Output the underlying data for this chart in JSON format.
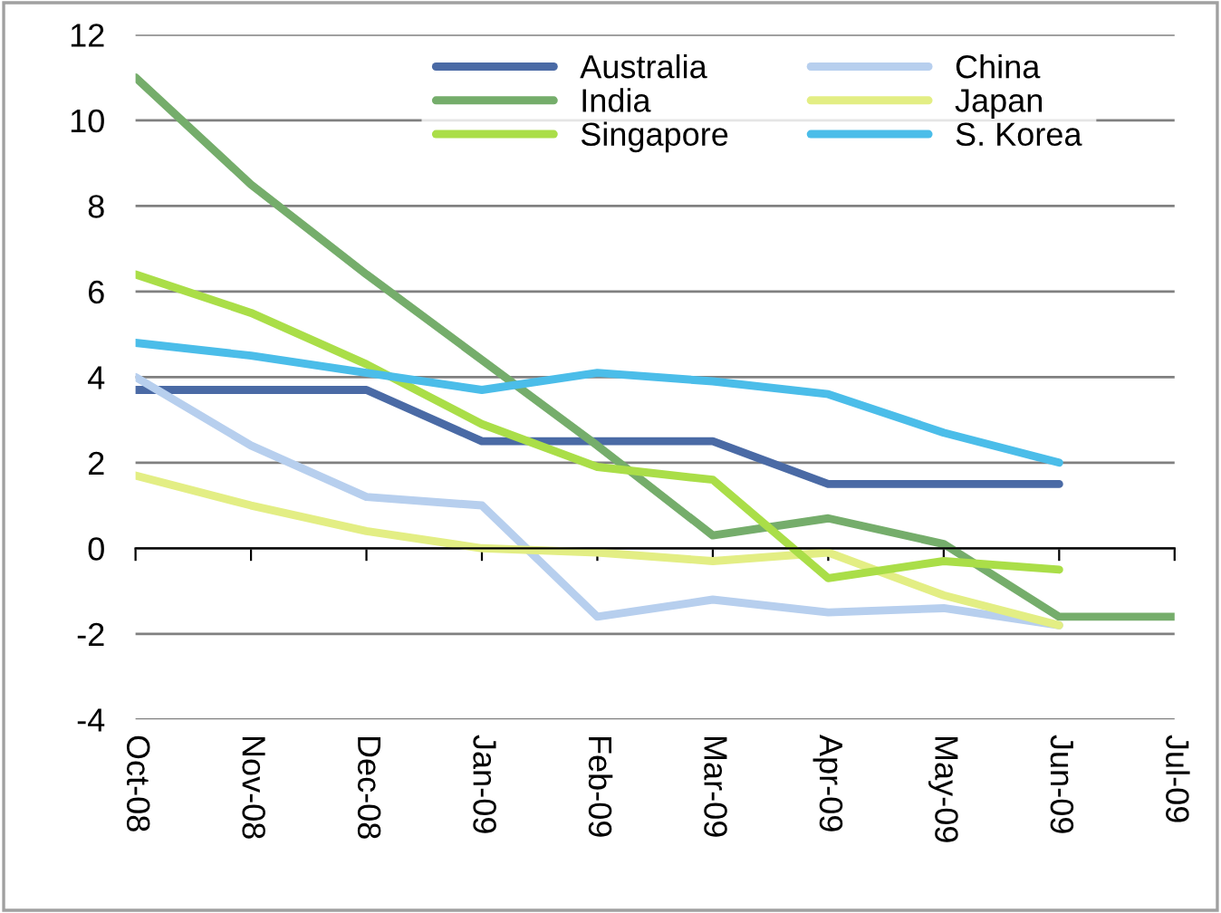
{
  "chart_data": {
    "type": "line",
    "categories": [
      "Oct-08",
      "Nov-08",
      "Dec-08",
      "Jan-09",
      "Feb-09",
      "Mar-09",
      "Apr-09",
      "May-09",
      "Jun-09",
      "Jul-09"
    ],
    "ylim": [
      -4,
      12
    ],
    "yticks": [
      -4,
      -2,
      0,
      2,
      4,
      6,
      8,
      10,
      12
    ],
    "grid": "y",
    "legend": "top",
    "marker": "none",
    "line_style": "solid",
    "series": [
      {
        "name": "Australia",
        "color": "#4a6aa5",
        "values": [
          3.7,
          3.7,
          3.7,
          2.5,
          2.5,
          2.5,
          1.5,
          1.5,
          1.5,
          null
        ]
      },
      {
        "name": "China",
        "color": "#b7cfee",
        "values": [
          4.0,
          2.4,
          1.2,
          1.0,
          -1.6,
          -1.2,
          -1.5,
          -1.4,
          -1.8,
          null
        ]
      },
      {
        "name": "India",
        "color": "#75ad6b",
        "values": [
          11.0,
          8.5,
          6.4,
          4.4,
          2.4,
          0.3,
          0.7,
          0.1,
          -1.6,
          -1.6
        ]
      },
      {
        "name": "Japan",
        "color": "#e3ee84",
        "values": [
          1.7,
          1.0,
          0.4,
          0.0,
          -0.1,
          -0.3,
          -0.1,
          -1.1,
          -1.8,
          null
        ]
      },
      {
        "name": "Singapore",
        "color": "#aade48",
        "values": [
          6.4,
          5.5,
          4.3,
          2.9,
          1.9,
          1.6,
          -0.7,
          -0.3,
          -0.5,
          null
        ]
      },
      {
        "name": "S. Korea",
        "color": "#4bbde9",
        "values": [
          4.8,
          4.5,
          4.1,
          3.7,
          4.1,
          3.9,
          3.6,
          2.7,
          2.0,
          null
        ]
      }
    ]
  }
}
